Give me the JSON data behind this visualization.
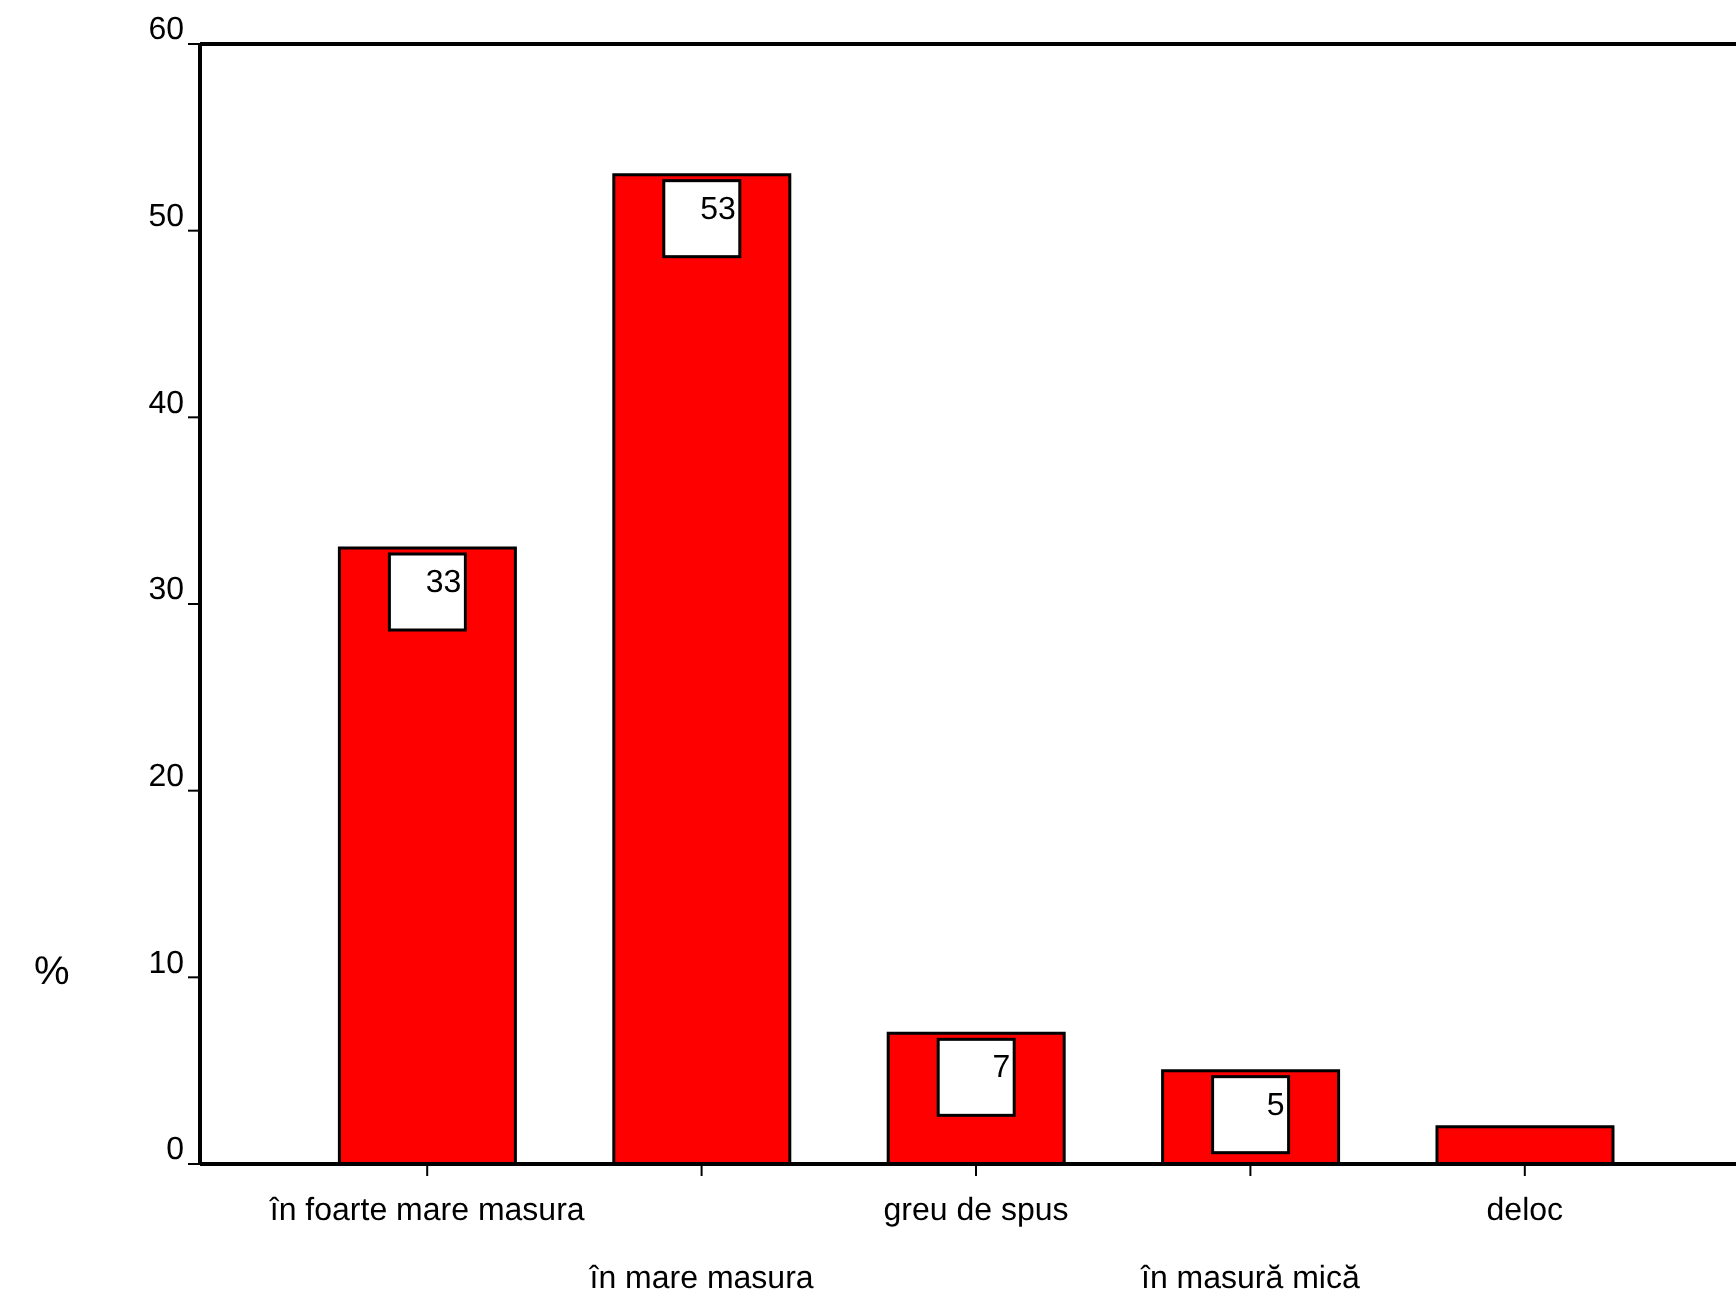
{
  "chart_data": {
    "type": "bar",
    "ylabel": "%",
    "categories": [
      "în foarte mare masura",
      "în mare masura",
      "greu de spus",
      "în masură mică",
      "deloc"
    ],
    "values": [
      33,
      53,
      7,
      5,
      2
    ],
    "value_labels": [
      "33",
      "53",
      "7",
      "5",
      null
    ],
    "color": "#ff0000",
    "ylim": [
      0,
      60
    ],
    "yticks": [
      0,
      10,
      20,
      30,
      40,
      50,
      60
    ]
  }
}
